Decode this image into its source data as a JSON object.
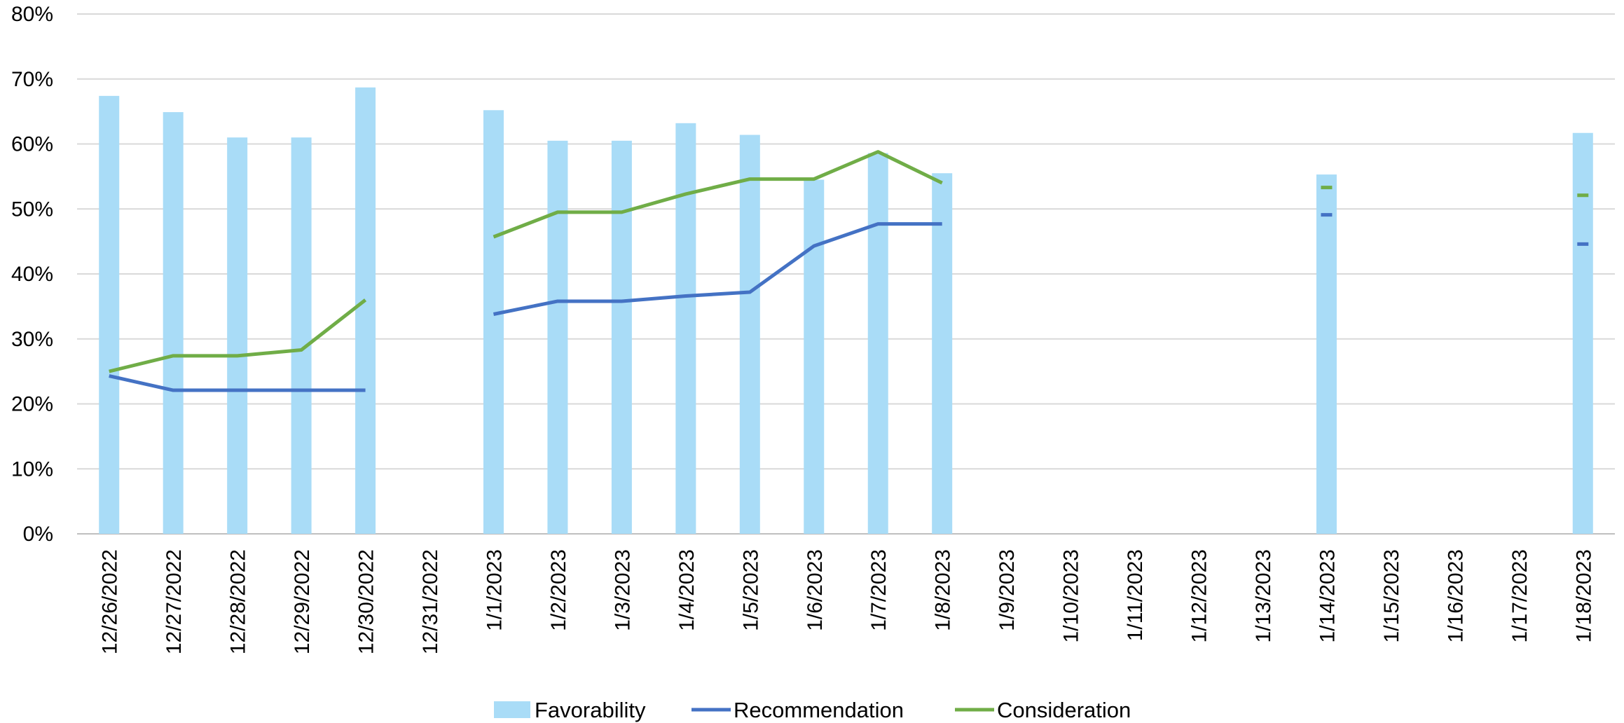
{
  "chart_data": {
    "type": "bar",
    "title": "",
    "xlabel": "",
    "ylabel": "",
    "ylim": [
      0,
      0.8
    ],
    "yticks": [
      "0%",
      "10%",
      "20%",
      "30%",
      "40%",
      "50%",
      "60%",
      "70%",
      "80%"
    ],
    "grid": true,
    "legend_position": "bottom",
    "categories": [
      "12/26/2022",
      "12/27/2022",
      "12/28/2022",
      "12/29/2022",
      "12/30/2022",
      "12/31/2022",
      "1/1/2023",
      "1/2/2023",
      "1/3/2023",
      "1/4/2023",
      "1/5/2023",
      "1/6/2023",
      "1/7/2023",
      "1/8/2023",
      "1/9/2023",
      "1/10/2023",
      "1/11/2023",
      "1/12/2023",
      "1/13/2023",
      "1/14/2023",
      "1/15/2023",
      "1/16/2023",
      "1/17/2023",
      "1/18/2023"
    ],
    "series": [
      {
        "name": "Favorability",
        "type": "bar",
        "color": "#A9DCF7",
        "values": [
          0.674,
          0.649,
          0.61,
          0.61,
          0.687,
          null,
          0.652,
          0.605,
          0.605,
          0.632,
          0.614,
          0.545,
          0.586,
          0.555,
          null,
          null,
          null,
          null,
          null,
          0.553,
          null,
          null,
          null,
          0.617
        ]
      },
      {
        "name": "Recommendation",
        "type": "line",
        "color": "#4472C4",
        "values": [
          0.243,
          0.221,
          0.221,
          0.221,
          0.221,
          null,
          0.338,
          0.358,
          0.358,
          0.366,
          0.372,
          0.443,
          0.477,
          0.477,
          null,
          null,
          null,
          null,
          null,
          0.491,
          null,
          null,
          null,
          0.446
        ]
      },
      {
        "name": "Consideration",
        "type": "line",
        "color": "#70AD47",
        "values": [
          0.25,
          0.274,
          0.274,
          0.283,
          0.36,
          null,
          0.457,
          0.495,
          0.495,
          0.523,
          0.546,
          0.546,
          0.588,
          0.54,
          null,
          null,
          null,
          null,
          null,
          0.533,
          null,
          null,
          null,
          0.521
        ]
      }
    ]
  }
}
